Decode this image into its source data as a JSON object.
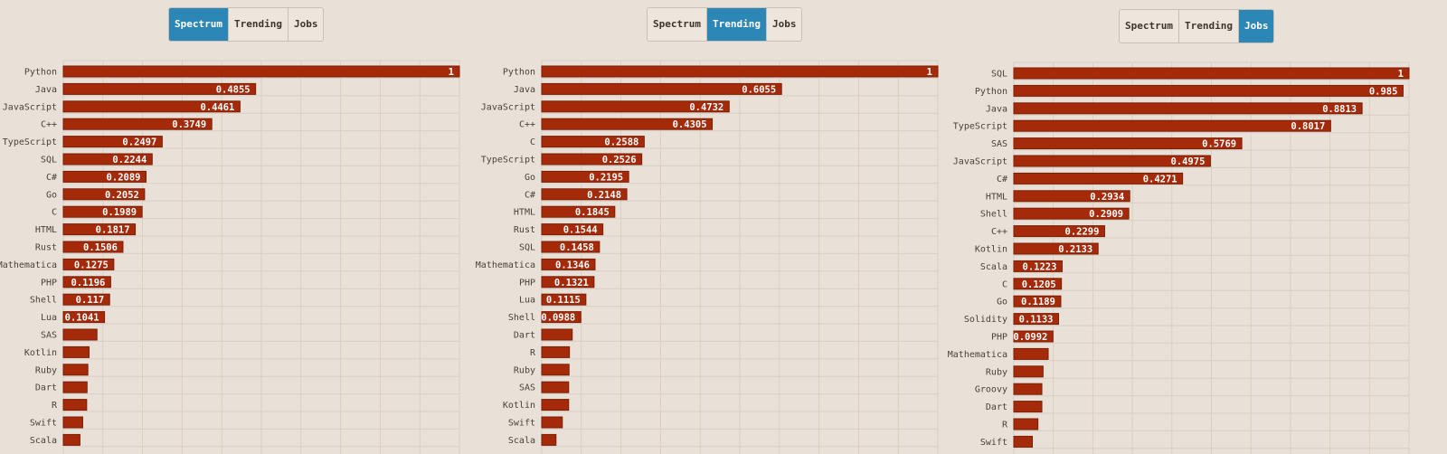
{
  "tabs": {
    "spectrum": "Spectrum",
    "trending": "Trending",
    "jobs": "Jobs"
  },
  "colors": {
    "bar": "#a52a0a",
    "active_tab": "#2c87b7",
    "background": "#e9e1d7"
  },
  "chart_data": [
    {
      "type": "bar",
      "orientation": "horizontal",
      "active_tab": "Spectrum",
      "xlim": [
        0,
        1
      ],
      "grid": true,
      "categories": [
        "Python",
        "Java",
        "JavaScript",
        "C++",
        "TypeScript",
        "SQL",
        "C#",
        "Go",
        "C",
        "HTML",
        "Rust",
        "Mathematica",
        "PHP",
        "Shell",
        "Lua",
        "SAS",
        "Kotlin",
        "Ruby",
        "Dart",
        "R",
        "Swift",
        "Scala"
      ],
      "values": [
        1,
        0.4855,
        0.4461,
        0.3749,
        0.2497,
        0.2244,
        0.2089,
        0.2052,
        0.1989,
        0.1817,
        0.1506,
        0.1275,
        0.1196,
        0.117,
        0.1041,
        0.085,
        0.065,
        0.062,
        0.06,
        0.059,
        0.049,
        0.042
      ],
      "labels": [
        "1",
        "0.4855",
        "0.4461",
        "0.3749",
        "0.2497",
        "0.2244",
        "0.2089",
        "0.2052",
        "0.1989",
        "0.1817",
        "0.1506",
        "0.1275",
        "0.1196",
        "0.117",
        "0.1041",
        "",
        "",
        "",
        "",
        "",
        "",
        ""
      ]
    },
    {
      "type": "bar",
      "orientation": "horizontal",
      "active_tab": "Trending",
      "xlim": [
        0,
        1
      ],
      "grid": true,
      "categories": [
        "Python",
        "Java",
        "JavaScript",
        "C++",
        "C",
        "TypeScript",
        "Go",
        "C#",
        "HTML",
        "Rust",
        "SQL",
        "Mathematica",
        "PHP",
        "Lua",
        "Shell",
        "Dart",
        "R",
        "Ruby",
        "SAS",
        "Kotlin",
        "Swift",
        "Scala"
      ],
      "values": [
        1,
        0.6055,
        0.4732,
        0.4305,
        0.2588,
        0.2526,
        0.2195,
        0.2148,
        0.1845,
        0.1544,
        0.1458,
        0.1346,
        0.1321,
        0.1115,
        0.0988,
        0.077,
        0.07,
        0.069,
        0.068,
        0.068,
        0.052,
        0.036
      ],
      "labels": [
        "1",
        "0.6055",
        "0.4732",
        "0.4305",
        "0.2588",
        "0.2526",
        "0.2195",
        "0.2148",
        "0.1845",
        "0.1544",
        "0.1458",
        "0.1346",
        "0.1321",
        "0.1115",
        "0.0988",
        "",
        "",
        "",
        "",
        "",
        "",
        ""
      ]
    },
    {
      "type": "bar",
      "orientation": "horizontal",
      "active_tab": "Jobs",
      "xlim": [
        0,
        1
      ],
      "grid": true,
      "categories": [
        "SQL",
        "Python",
        "Java",
        "TypeScript",
        "SAS",
        "JavaScript",
        "C#",
        "HTML",
        "Shell",
        "C++",
        "Kotlin",
        "Scala",
        "C",
        "Go",
        "Solidity",
        "PHP",
        "Mathematica",
        "Ruby",
        "Groovy",
        "Dart",
        "R",
        "Swift"
      ],
      "values": [
        1,
        0.985,
        0.8813,
        0.8017,
        0.5769,
        0.4975,
        0.4271,
        0.2934,
        0.2909,
        0.2299,
        0.2133,
        0.1223,
        0.1205,
        0.1189,
        0.1133,
        0.0992,
        0.087,
        0.074,
        0.071,
        0.071,
        0.061,
        0.047
      ],
      "labels": [
        "1",
        "0.985",
        "0.8813",
        "0.8017",
        "0.5769",
        "0.4975",
        "0.4271",
        "0.2934",
        "0.2909",
        "0.2299",
        "0.2133",
        "0.1223",
        "0.1205",
        "0.1189",
        "0.1133",
        "0.0992",
        "",
        "",
        "",
        "",
        "",
        ""
      ]
    }
  ]
}
